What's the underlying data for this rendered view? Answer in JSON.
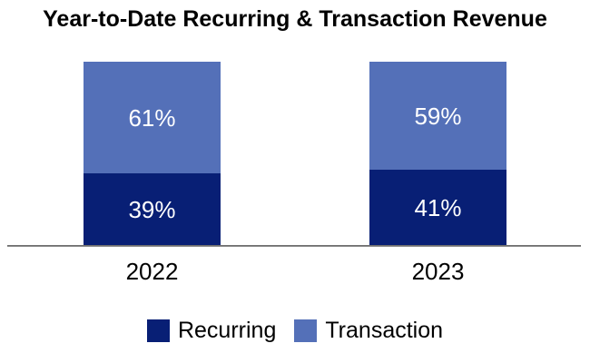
{
  "title": "Year-to-Date Recurring & Transaction Revenue",
  "colors": {
    "recurring": "#081F75",
    "transaction": "#5470B8",
    "axis_line": "#898989",
    "data_label_text": "#FFFFFF",
    "text": "#000000",
    "background": "#FFFFFF"
  },
  "chart_data": {
    "type": "bar",
    "stacked": true,
    "title": "Year-to-Date Recurring & Transaction Revenue",
    "categories": [
      "2022",
      "2023"
    ],
    "series": [
      {
        "name": "Recurring",
        "color": "#081F75",
        "values": [
          39,
          41
        ],
        "labels": [
          "39%",
          "41%"
        ]
      },
      {
        "name": "Transaction",
        "color": "#5470B8",
        "values": [
          61,
          59
        ],
        "labels": [
          "61%",
          "59%"
        ]
      }
    ],
    "value_unit": "percent",
    "ylim": [
      0,
      100
    ],
    "grid": false,
    "y_axis_visible": false,
    "legend_position": "bottom"
  },
  "legend": {
    "items": [
      {
        "label": "Recurring"
      },
      {
        "label": "Transaction"
      }
    ]
  }
}
